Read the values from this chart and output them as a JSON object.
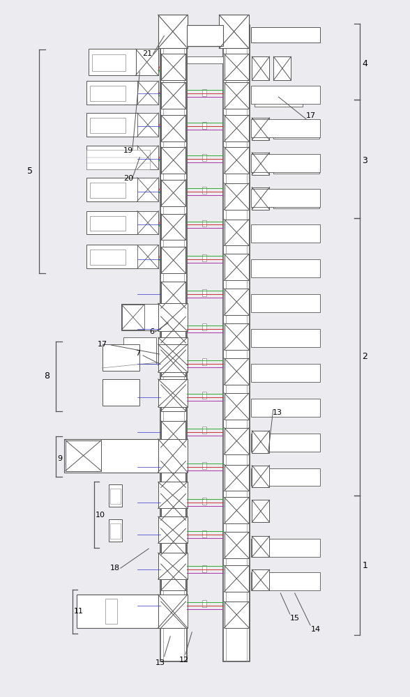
{
  "bg_color": "#ebebf0",
  "line_color": "#555555",
  "line_color_light": "#888888",
  "accent_red": "#cc3333",
  "accent_green": "#33aa33",
  "accent_blue": "#3333cc",
  "accent_magenta": "#aa33aa",
  "figsize": [
    5.88,
    10.0
  ],
  "dpi": 100
}
